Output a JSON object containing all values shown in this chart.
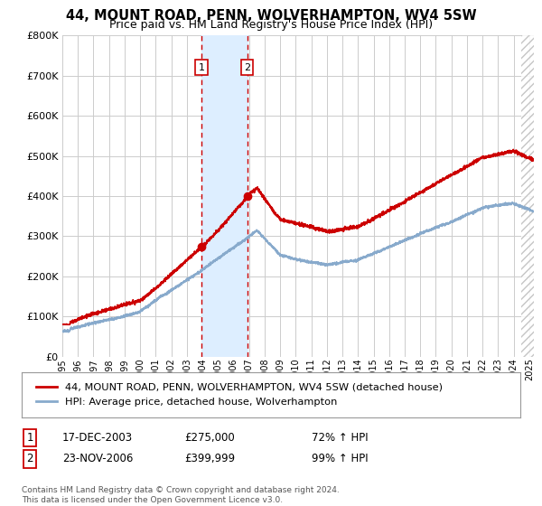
{
  "title": "44, MOUNT ROAD, PENN, WOLVERHAMPTON, WV4 5SW",
  "subtitle": "Price paid vs. HM Land Registry's House Price Index (HPI)",
  "legend_line1": "44, MOUNT ROAD, PENN, WOLVERHAMPTON, WV4 5SW (detached house)",
  "legend_line2": "HPI: Average price, detached house, Wolverhampton",
  "sale1_date": "17-DEC-2003",
  "sale1_price": 275000,
  "sale1_hpi": "72% ↑ HPI",
  "sale2_date": "23-NOV-2006",
  "sale2_price": 399999,
  "sale2_hpi": "99% ↑ HPI",
  "footer": "Contains HM Land Registry data © Crown copyright and database right 2024.\nThis data is licensed under the Open Government Licence v3.0.",
  "ylim": [
    0,
    800000
  ],
  "yticks": [
    0,
    100000,
    200000,
    300000,
    400000,
    500000,
    600000,
    700000,
    800000
  ],
  "red_color": "#cc0000",
  "blue_color": "#88aacc",
  "shade_color": "#ddeeff",
  "marker_color": "#cc0000",
  "grid_color": "#cccccc",
  "bg_color": "#ffffff",
  "sale1_x": 2003.958,
  "sale2_x": 2006.875,
  "xlim_left": 1995,
  "xlim_right": 2025.3
}
